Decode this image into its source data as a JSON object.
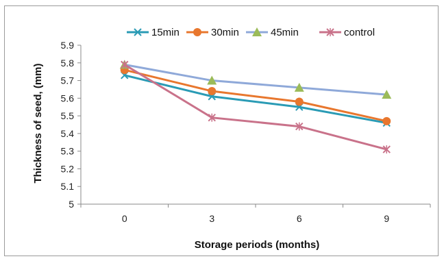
{
  "chart_data": {
    "type": "line",
    "title": "",
    "xlabel": "Storage periods (months)",
    "ylabel": "Thickness of seed, (mm)",
    "categories": [
      "0",
      "3",
      "6",
      "9"
    ],
    "ylim": [
      5,
      5.9
    ],
    "yticks": [
      "5",
      "5.1",
      "5.2",
      "5.3",
      "5.4",
      "5.5",
      "5.6",
      "5.7",
      "5.8",
      "5.9"
    ],
    "grid": false,
    "legend": "top-right",
    "series": [
      {
        "name": "15min",
        "values": [
          5.73,
          5.61,
          5.55,
          5.46
        ],
        "color": "#2a9bb5",
        "marker": "star"
      },
      {
        "name": "30min",
        "values": [
          5.76,
          5.64,
          5.58,
          5.47
        ],
        "color": "#e8772e",
        "marker": "circle"
      },
      {
        "name": "45min",
        "values": [
          5.79,
          5.7,
          5.66,
          5.62
        ],
        "color": "#8fa9d9",
        "marker": "triangle"
      },
      {
        "name": "control",
        "values": [
          5.79,
          5.49,
          5.44,
          5.31
        ],
        "color": "#c9728a",
        "marker": "x"
      }
    ]
  }
}
